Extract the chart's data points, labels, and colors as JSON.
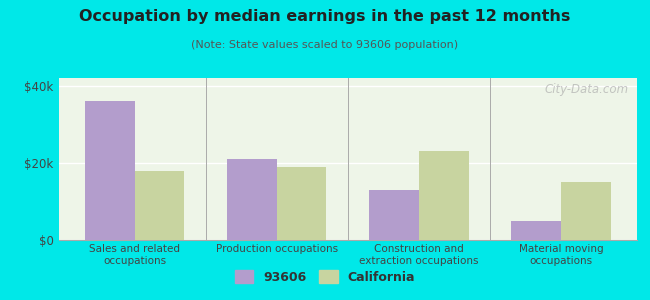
{
  "title": "Occupation by median earnings in the past 12 months",
  "subtitle": "(Note: State values scaled to 93606 population)",
  "categories": [
    "Sales and related\noccupations",
    "Production occupations",
    "Construction and\nextraction occupations",
    "Material moving\noccupations"
  ],
  "values_93606": [
    36000,
    21000,
    13000,
    5000
  ],
  "values_california": [
    18000,
    19000,
    23000,
    15000
  ],
  "color_93606": "#b39dcc",
  "color_california": "#c8d4a0",
  "background_color": "#00e8e8",
  "plot_bg_color": "#eef5e8",
  "ylim": [
    0,
    42000
  ],
  "yticks": [
    0,
    20000,
    40000
  ],
  "ytick_labels": [
    "$0",
    "$20k",
    "$40k"
  ],
  "legend_93606": "93606",
  "legend_california": "California",
  "bar_width": 0.35,
  "watermark": "City-Data.com"
}
